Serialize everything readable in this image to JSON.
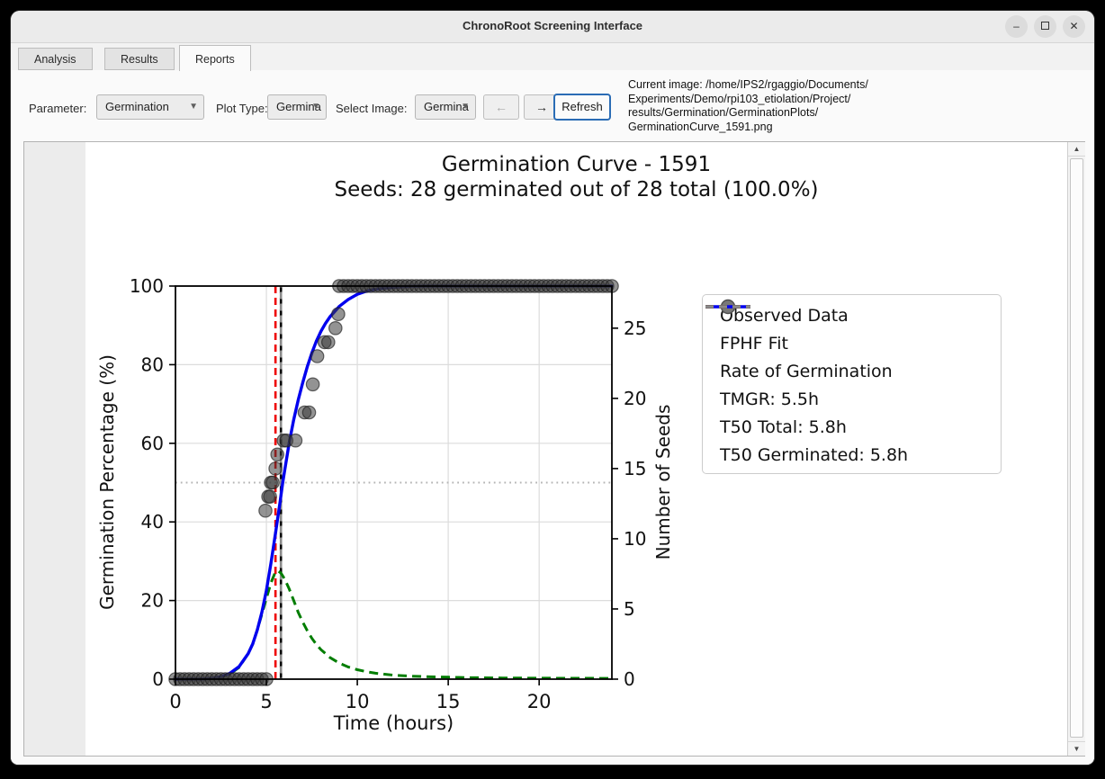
{
  "window": {
    "title": "ChronoRoot Screening Interface",
    "controls": {
      "minimize": "–",
      "close": "✕"
    }
  },
  "tabs": [
    {
      "label": "Analysis",
      "active": false
    },
    {
      "label": "Results",
      "active": false
    },
    {
      "label": "Reports",
      "active": true
    }
  ],
  "toolbar": {
    "parameter_label": "Parameter:",
    "parameter_value": "Germination",
    "plot_type_label": "Plot Type:",
    "plot_type_value": "Germina",
    "select_image_label": "Select Image:",
    "select_image_value": "Germina",
    "prev_label": "←",
    "next_label": "→",
    "refresh_label": "Refresh",
    "current_image_lines": [
      "Current image: /home/IPS2/rgaggio/Documents/",
      "Experiments/Demo/rpi103_etiolation/Project/",
      "results/Germination/GerminationPlots/",
      "GerminationCurve_1591.png"
    ]
  },
  "chart_data": {
    "type": "line",
    "title": "Germination Curve - 1591",
    "subtitle": "Seeds: 28 germinated out of 28 total (100.0%)",
    "xlabel": "Time (hours)",
    "ylabel_left": "Germination Percentage (%)",
    "ylabel_right": "Number of Seeds",
    "xlim": [
      0,
      24
    ],
    "ylim_left": [
      0,
      100
    ],
    "ylim_right": [
      0,
      28
    ],
    "xticks": [
      0,
      5,
      10,
      15,
      20
    ],
    "yticks_left": [
      0,
      20,
      40,
      60,
      80,
      100
    ],
    "yticks_right": [
      0,
      5,
      10,
      15,
      20,
      25
    ],
    "grid": true,
    "legend_position": "upper right",
    "total_seeds": 28,
    "germinated_seeds": 28,
    "germinated_pct": 100.0,
    "half_germination_pct": 50,
    "tmgr_h": 5.5,
    "t50_total_h": 5.8,
    "t50_germinated_h": 5.8,
    "vlines": [
      {
        "name": "tmgr-line",
        "t": 5.5,
        "color": "#ee0000",
        "dash": "8 5",
        "offset": 0
      },
      {
        "name": "t50-total-line",
        "t": 5.8,
        "color": "#000000",
        "dash": "8 5",
        "offset": 0
      },
      {
        "name": "t50-germinated-line",
        "t": 5.8,
        "color": "#8a8a8a",
        "dash": "8 5",
        "offset": 6.5
      }
    ],
    "series": {
      "observed": {
        "name": "Observed Data",
        "marker_color": "#3a3a3a",
        "t_seeds": [
          [
            0,
            0
          ],
          [
            0.25,
            0
          ],
          [
            0.5,
            0
          ],
          [
            0.75,
            0
          ],
          [
            1,
            0
          ],
          [
            1.25,
            0
          ],
          [
            1.5,
            0
          ],
          [
            1.75,
            0
          ],
          [
            2,
            0
          ],
          [
            2.25,
            0
          ],
          [
            2.5,
            0
          ],
          [
            2.75,
            0
          ],
          [
            3,
            0
          ],
          [
            3.25,
            0
          ],
          [
            3.5,
            0
          ],
          [
            3.75,
            0
          ],
          [
            4,
            0
          ],
          [
            4.25,
            0
          ],
          [
            4.5,
            0
          ],
          [
            4.75,
            0
          ],
          [
            5,
            0
          ],
          [
            4.95,
            12
          ],
          [
            5.1,
            13
          ],
          [
            5.2,
            13
          ],
          [
            5.25,
            14
          ],
          [
            5.35,
            14
          ],
          [
            5.5,
            15
          ],
          [
            5.6,
            16
          ],
          [
            5.95,
            17
          ],
          [
            6.1,
            17
          ],
          [
            6.6,
            17
          ],
          [
            7.1,
            19
          ],
          [
            7.35,
            19
          ],
          [
            7.55,
            21
          ],
          [
            7.8,
            23
          ],
          [
            8.2,
            24
          ],
          [
            8.4,
            24
          ],
          [
            8.8,
            25
          ],
          [
            8.95,
            26
          ],
          [
            9,
            28
          ],
          [
            9.25,
            28
          ],
          [
            9.5,
            28
          ],
          [
            9.75,
            28
          ],
          [
            10,
            28
          ],
          [
            10.25,
            28
          ],
          [
            10.5,
            28
          ],
          [
            10.75,
            28
          ],
          [
            11,
            28
          ],
          [
            11.25,
            28
          ],
          [
            11.5,
            28
          ],
          [
            11.75,
            28
          ],
          [
            12,
            28
          ],
          [
            12.25,
            28
          ],
          [
            12.5,
            28
          ],
          [
            12.75,
            28
          ],
          [
            13,
            28
          ],
          [
            13.25,
            28
          ],
          [
            13.5,
            28
          ],
          [
            13.75,
            28
          ],
          [
            14,
            28
          ],
          [
            14.25,
            28
          ],
          [
            14.5,
            28
          ],
          [
            14.75,
            28
          ],
          [
            15,
            28
          ],
          [
            15.25,
            28
          ],
          [
            15.5,
            28
          ],
          [
            15.75,
            28
          ],
          [
            16,
            28
          ],
          [
            16.25,
            28
          ],
          [
            16.5,
            28
          ],
          [
            16.75,
            28
          ],
          [
            17,
            28
          ],
          [
            17.25,
            28
          ],
          [
            17.5,
            28
          ],
          [
            17.75,
            28
          ],
          [
            18,
            28
          ],
          [
            18.25,
            28
          ],
          [
            18.5,
            28
          ],
          [
            18.75,
            28
          ],
          [
            19,
            28
          ],
          [
            19.25,
            28
          ],
          [
            19.5,
            28
          ],
          [
            19.75,
            28
          ],
          [
            20,
            28
          ],
          [
            20.25,
            28
          ],
          [
            20.5,
            28
          ],
          [
            20.75,
            28
          ],
          [
            21,
            28
          ],
          [
            21.25,
            28
          ],
          [
            21.5,
            28
          ],
          [
            21.75,
            28
          ],
          [
            22,
            28
          ],
          [
            22.25,
            28
          ],
          [
            22.5,
            28
          ],
          [
            22.75,
            28
          ],
          [
            23,
            28
          ],
          [
            23.25,
            28
          ],
          [
            23.5,
            28
          ],
          [
            23.75,
            28
          ],
          [
            24,
            28
          ]
        ]
      },
      "fit": {
        "name": "FPHF Fit",
        "color": "#0000ee",
        "points": [
          [
            0,
            0
          ],
          [
            1.5,
            0.05
          ],
          [
            2,
            0.2
          ],
          [
            2.5,
            0.6
          ],
          [
            3,
            1.5
          ],
          [
            3.5,
            3.2
          ],
          [
            4,
            6.5
          ],
          [
            4.25,
            9
          ],
          [
            4.5,
            12.5
          ],
          [
            4.75,
            17
          ],
          [
            5,
            22.5
          ],
          [
            5.25,
            29.5
          ],
          [
            5.5,
            37
          ],
          [
            5.75,
            45
          ],
          [
            5.9,
            50
          ],
          [
            6,
            53
          ],
          [
            6.25,
            60
          ],
          [
            6.5,
            66
          ],
          [
            6.75,
            71
          ],
          [
            7,
            75.5
          ],
          [
            7.25,
            79.5
          ],
          [
            7.5,
            83
          ],
          [
            7.75,
            86
          ],
          [
            8,
            88.5
          ],
          [
            8.25,
            90.5
          ],
          [
            8.5,
            92.2
          ],
          [
            9,
            94.8
          ],
          [
            9.5,
            96.6
          ],
          [
            10,
            97.9
          ],
          [
            10.5,
            98.7
          ],
          [
            11,
            99.2
          ],
          [
            11.5,
            99.5
          ],
          [
            12,
            99.7
          ],
          [
            12.5,
            99.85
          ],
          [
            13,
            99.95
          ],
          [
            14,
            100
          ],
          [
            24,
            100
          ]
        ]
      },
      "rate": {
        "name": "Rate of Germination",
        "color": "#007d00",
        "dash": "10 6",
        "points": [
          [
            0,
            0
          ],
          [
            1.5,
            0.05
          ],
          [
            2,
            0.15
          ],
          [
            2.5,
            0.5
          ],
          [
            3,
            1.3
          ],
          [
            3.5,
            3
          ],
          [
            4,
            6.5
          ],
          [
            4.25,
            9
          ],
          [
            4.5,
            12.5
          ],
          [
            4.75,
            16.5
          ],
          [
            5,
            20.5
          ],
          [
            5.25,
            24.5
          ],
          [
            5.5,
            27.3
          ],
          [
            5.65,
            27.5
          ],
          [
            5.8,
            27
          ],
          [
            6,
            25.5
          ],
          [
            6.25,
            23
          ],
          [
            6.5,
            20
          ],
          [
            6.75,
            17
          ],
          [
            7,
            14.5
          ],
          [
            7.25,
            12.3
          ],
          [
            7.5,
            10.4
          ],
          [
            7.75,
            8.8
          ],
          [
            8,
            7.5
          ],
          [
            8.5,
            5.5
          ],
          [
            9,
            4.1
          ],
          [
            9.5,
            3.1
          ],
          [
            10,
            2.4
          ],
          [
            10.5,
            1.9
          ],
          [
            11,
            1.5
          ],
          [
            12,
            1.0
          ],
          [
            13,
            0.75
          ],
          [
            14,
            0.6
          ],
          [
            15,
            0.5
          ],
          [
            16,
            0.4
          ],
          [
            18,
            0.3
          ],
          [
            20,
            0.25
          ],
          [
            22,
            0.22
          ],
          [
            24,
            0.2
          ]
        ]
      }
    },
    "legend": [
      {
        "label": "Observed Data",
        "swatch": "marker",
        "color": "#787878"
      },
      {
        "label": "FPHF Fit",
        "swatch": "line",
        "color": "#0000ee"
      },
      {
        "label": "Rate of Germination",
        "swatch": "dash",
        "color": "#007d00"
      },
      {
        "label": "TMGR: 5.5h",
        "swatch": "dash",
        "color": "#ee0000"
      },
      {
        "label": "T50 Total: 5.8h",
        "swatch": "dash",
        "color": "#000000"
      },
      {
        "label": "T50 Germinated: 5.8h",
        "swatch": "dash",
        "color": "#8a8a8a"
      }
    ],
    "style": {
      "grid_color": "#dcdcdc",
      "half_line_color": "#b5b5b5",
      "spine_color": "#000000",
      "text_color": "#111111"
    }
  }
}
